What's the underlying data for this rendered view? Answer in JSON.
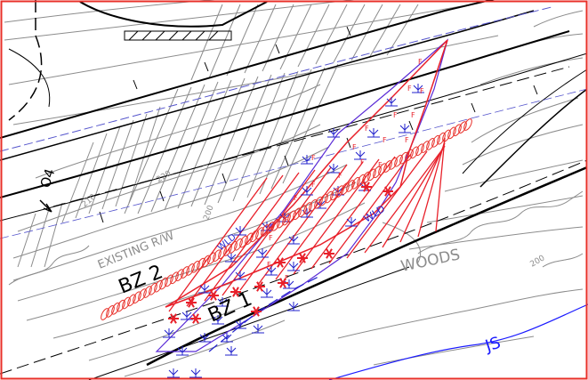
{
  "labels": {
    "bz2": "BZ 2",
    "bz1": "BZ 1",
    "woods": "WOODS",
    "existing_rw": "EXISTING R/W",
    "js": "JS",
    "wld_1": "WLD",
    "wld_2": "WLD",
    "contour_210": "210",
    "contour_200": "200",
    "contour_220": "220",
    "contour_200b": "200",
    "north_tag": "O4"
  },
  "colors": {
    "frame": "#e8302a",
    "contour": "#8c8c8c",
    "road": "#000000",
    "wetland_fill": "#e8202a",
    "wetland_symbol": "#2222cc",
    "centerline": "#5555cc",
    "stream": "#1a1aff"
  },
  "icons": {
    "marsh_symbol": "wetland-marsh-symbol-icon",
    "asterisk": "asterisk-marker-icon",
    "fill_tag": "fill-letter-icon"
  },
  "fill_letter": "F"
}
